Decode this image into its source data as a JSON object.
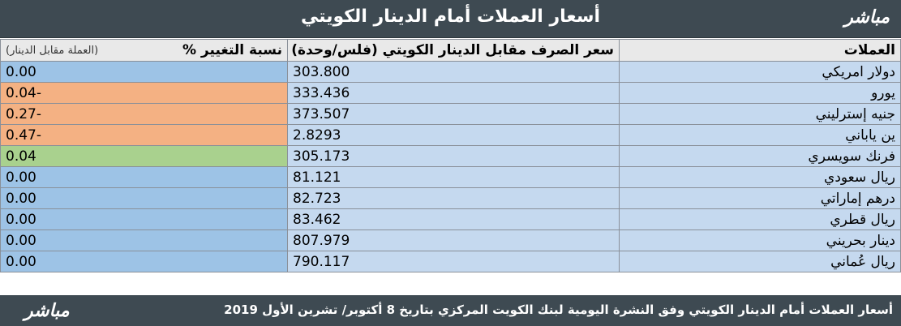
{
  "header": {
    "title": "أسعار العملات أمام الدينار الكويتي",
    "logo": "مباشر"
  },
  "table": {
    "col_currency": "العملات",
    "col_rate": "سعر الصرف مقابل الدينار الكويتي (فلس/وحدة)",
    "col_change": "نسبة التغيير %",
    "col_change_note": "(العملة مقابل الدينار)",
    "rows": [
      {
        "currency": "دولار امريكي",
        "rate": "303.800",
        "change": "0.00"
      },
      {
        "currency": "يورو",
        "rate": "333.436",
        "change": "-0.04"
      },
      {
        "currency": "جنيه إسترليني",
        "rate": "373.507",
        "change": "-0.27"
      },
      {
        "currency": "ين ياباني",
        "rate": "2.8293",
        "change": "-0.47"
      },
      {
        "currency": "فرنك سويسري",
        "rate": "305.173",
        "change": "0.04"
      },
      {
        "currency": "ريال سعودي",
        "rate": "81.121",
        "change": "0.00"
      },
      {
        "currency": "درهم إماراتي",
        "rate": "82.723",
        "change": "0.00"
      },
      {
        "currency": "ريال قطري",
        "rate": "83.462",
        "change": "0.00"
      },
      {
        "currency": "دينار بحريني",
        "rate": "807.979",
        "change": "0.00"
      },
      {
        "currency": "ريال عُماني",
        "rate": "790.117",
        "change": "0.00"
      }
    ]
  },
  "footer": {
    "note": "أسعار  العملات أمام الدينار الكويتي وفق النشرة اليومية لبنك الكويت المركزي بتاريخ 8 أكتوبر/ تشرين الأول 2019",
    "logo": "مباشر"
  },
  "colors": {
    "header_bg": "#3e4a52",
    "row_bg": "#c5d9ef",
    "change_neutral": "#9dc3e6",
    "change_negative": "#f4b183",
    "change_positive": "#a9d18e"
  }
}
